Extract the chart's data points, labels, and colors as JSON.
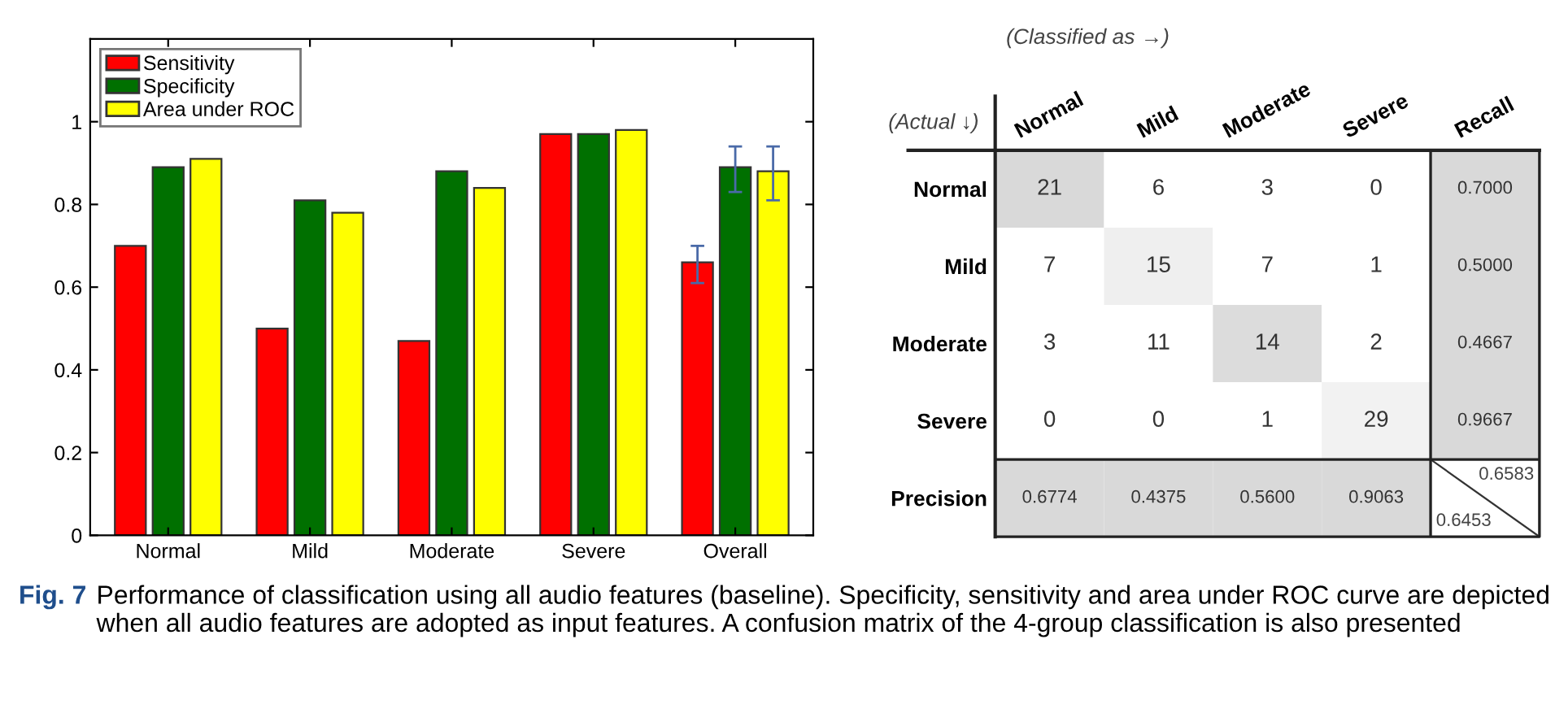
{
  "chart_data": [
    {
      "type": "bar",
      "categories": [
        "Normal",
        "Mild",
        "Moderate",
        "Severe",
        "Overall"
      ],
      "series": [
        {
          "name": "Sensitivity",
          "color": "#ff0000",
          "values": [
            0.7,
            0.5,
            0.47,
            0.97,
            0.66
          ],
          "errors": [
            null,
            null,
            null,
            null,
            [
              0.61,
              0.7
            ]
          ]
        },
        {
          "name": "Specificity",
          "color": "#007000",
          "values": [
            0.89,
            0.81,
            0.88,
            0.97,
            0.89
          ],
          "errors": [
            null,
            null,
            null,
            null,
            [
              0.83,
              0.94
            ]
          ]
        },
        {
          "name": "Area under ROC",
          "color": "#ffff00",
          "values": [
            0.91,
            0.78,
            0.84,
            0.98,
            0.88
          ],
          "errors": [
            null,
            null,
            null,
            null,
            [
              0.81,
              0.94
            ]
          ]
        }
      ],
      "ylim": [
        0,
        1.2
      ],
      "yticks": [
        0,
        0.2,
        0.4,
        0.6,
        0.8,
        1
      ],
      "grid": false,
      "legend": "top left",
      "annotations": [
        "Fig. 7",
        "Performance of classification using all audio features (baseline). Specificity, sensitivity and area under ROC curve are depicted when all audio features are adopted as input features. A confusion matrix of the 4-group classification is also presented"
      ]
    },
    {
      "type": "heatmap",
      "xlabel": "(Classified as →)",
      "ylabel": "(Actual ↓)",
      "categories": [
        "Normal",
        "Mild",
        "Moderate",
        "Severe",
        "Recall"
      ],
      "y_categories": [
        "Normal",
        "Mild",
        "Moderate",
        "Severe",
        "Precision"
      ],
      "cells": [
        [
          21,
          6,
          3,
          0,
          0.7
        ],
        [
          7,
          15,
          7,
          1,
          0.5
        ],
        [
          3,
          11,
          14,
          2,
          0.4667
        ],
        [
          0,
          0,
          1,
          29,
          0.9667
        ],
        [
          0.6774,
          0.4375,
          0.56,
          0.9063,
          null
        ]
      ],
      "annotations": [
        "0.6583",
        "0.6453"
      ],
      "data_labels": true,
      "cell_labels": [
        [
          "21",
          "6",
          "3",
          "0",
          "0.7000"
        ],
        [
          "7",
          "15",
          "7",
          "1",
          "0.5000"
        ],
        [
          "3",
          "11",
          "14",
          "2",
          "0.4667"
        ],
        [
          "0",
          "0",
          "1",
          "29",
          "0.9667"
        ],
        [
          "0.6774",
          "0.4375",
          "0.5600",
          "0.9063",
          null
        ]
      ],
      "colors": [
        [
          "#d9d9d9",
          "#ffffff",
          "#ffffff",
          "#ffffff",
          "#d9d9d9"
        ],
        [
          "#ffffff",
          "#efefef",
          "#ffffff",
          "#ffffff",
          "#d9d9d9"
        ],
        [
          "#ffffff",
          "#ffffff",
          "#dcdcdc",
          "#ffffff",
          "#d9d9d9"
        ],
        [
          "#ffffff",
          "#ffffff",
          "#ffffff",
          "#f2f2f2",
          "#d9d9d9"
        ],
        [
          "#d9d9d9",
          "#d9d9d9",
          "#d9d9d9",
          "#d9d9d9",
          "#ffffff"
        ]
      ]
    }
  ]
}
